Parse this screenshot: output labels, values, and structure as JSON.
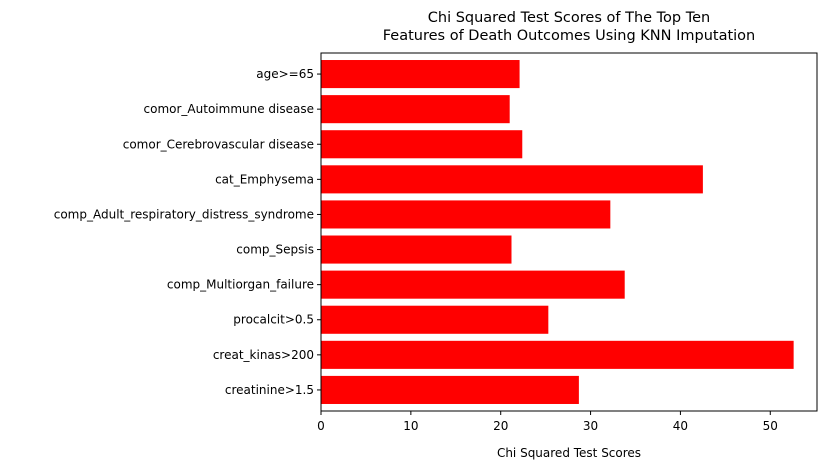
{
  "chart_data": {
    "type": "bar",
    "orientation": "horizontal",
    "title_lines": [
      "Chi Squared Test Scores of The Top Ten",
      "Features of Death Outcomes Using KNN Imputation"
    ],
    "xlabel": "Chi Squared Test Scores",
    "ylabel": "",
    "categories": [
      "creatinine>1.5",
      "creat_kinas>200",
      "procalcit>0.5",
      "comp_Multiorgan_failure",
      "comp_Sepsis",
      "comp_Adult_respiratory_distress_syndrome",
      "cat_Emphysema",
      "comor_Cerebrovascular disease",
      "comor_Autoimmune disease",
      "age>=65"
    ],
    "values": [
      28.7,
      52.6,
      25.3,
      33.8,
      21.2,
      32.2,
      42.5,
      22.4,
      21.0,
      22.1
    ],
    "xticks": [
      0,
      10,
      20,
      30,
      40,
      50
    ],
    "xlim": [
      0,
      55.2
    ],
    "bar_color": "#ff0000",
    "grid": false,
    "legend": "none"
  }
}
